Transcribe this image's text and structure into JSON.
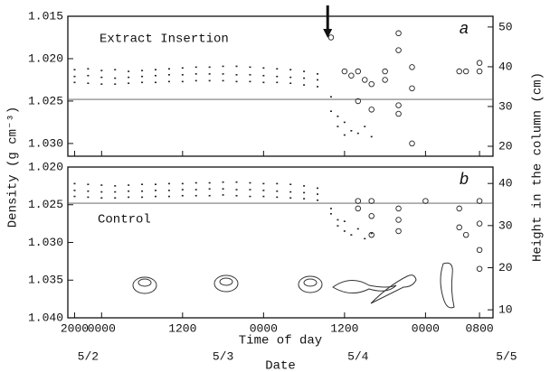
{
  "chart_data": [
    {
      "type": "scatter",
      "panel_label": "a",
      "annotation": "Extract Insertion",
      "arrow_x": 37.5,
      "ylabel": "Density (g cm⁻³)",
      "y2label": "Height in the column (cm)",
      "xlim": [
        -1,
        62
      ],
      "xticks": [
        0,
        4,
        16,
        28,
        40,
        52,
        60
      ],
      "ylim": [
        1.015,
        1.0315
      ],
      "invert_y": true,
      "yticks": [
        {
          "value": 1.015,
          "label": "1.015"
        },
        {
          "value": 1.02,
          "label": "1.020"
        },
        {
          "value": 1.025,
          "label": "1.025"
        },
        {
          "value": 1.03,
          "label": "1.030"
        }
      ],
      "y2lim": [
        17.5,
        52.7
      ],
      "y2ticks": [
        20,
        30,
        40,
        50
      ],
      "hline": 1.0248,
      "color": "#222",
      "series": [
        {
          "marker": "dot",
          "x": [
            0,
            2,
            4,
            6,
            8,
            10,
            12,
            14,
            16,
            18,
            20,
            22,
            24,
            26,
            28,
            30,
            32,
            34,
            36
          ],
          "values": [
            1.0213,
            1.0212,
            1.0214,
            1.0213,
            1.0215,
            1.0214,
            1.0213,
            1.0212,
            1.0211,
            1.021,
            1.021,
            1.0209,
            1.0209,
            1.021,
            1.0211,
            1.0212,
            1.0213,
            1.0215,
            1.0218
          ]
        },
        {
          "marker": "dot",
          "x": [
            0,
            2,
            4,
            6,
            8,
            10,
            12,
            14,
            16,
            18,
            20,
            22,
            24,
            26,
            28,
            30,
            32,
            34,
            36
          ],
          "values": [
            1.0221,
            1.022,
            1.0222,
            1.0223,
            1.0222,
            1.0221,
            1.022,
            1.0219,
            1.0219,
            1.0218,
            1.0218,
            1.0218,
            1.0219,
            1.0219,
            1.022,
            1.0221,
            1.0222,
            1.0223,
            1.0225
          ]
        },
        {
          "marker": "dot",
          "x": [
            0,
            2,
            4,
            6,
            8,
            10,
            12,
            14,
            16,
            18,
            20,
            22,
            24,
            26,
            28,
            30,
            32,
            34,
            36
          ],
          "values": [
            1.0228,
            1.0229,
            1.023,
            1.023,
            1.0229,
            1.0228,
            1.0228,
            1.0227,
            1.0227,
            1.0226,
            1.0226,
            1.0226,
            1.0227,
            1.0227,
            1.0228,
            1.0228,
            1.0229,
            1.0231,
            1.0233
          ]
        },
        {
          "marker": "dot",
          "x": [
            38,
            38,
            39,
            39,
            40,
            40,
            41,
            42,
            43,
            44
          ],
          "values": [
            1.0245,
            1.0262,
            1.0268,
            1.028,
            1.0275,
            1.029,
            1.0285,
            1.0288,
            1.028,
            1.0292
          ]
        },
        {
          "marker": "circle",
          "x": [
            38,
            40,
            41,
            42,
            43,
            44,
            42,
            44,
            46,
            46,
            48,
            48,
            48,
            48,
            50,
            50,
            50,
            57,
            58,
            60,
            60
          ],
          "values": [
            1.0175,
            1.0215,
            1.022,
            1.0215,
            1.0225,
            1.023,
            1.025,
            1.026,
            1.0215,
            1.0225,
            1.019,
            1.017,
            1.0255,
            1.0265,
            1.021,
            1.0235,
            1.03,
            1.0215,
            1.0215,
            1.0215,
            1.0205
          ]
        }
      ]
    },
    {
      "type": "scatter",
      "panel_label": "b",
      "annotation": "Control",
      "xlabel": "Time of day",
      "date_label": "Date",
      "xlim": [
        -1,
        62
      ],
      "xticks": [
        {
          "value": 0,
          "label": "2000"
        },
        {
          "value": 4,
          "label": "0000"
        },
        {
          "value": 16,
          "label": "1200"
        },
        {
          "value": 28,
          "label": "0000"
        },
        {
          "value": 40,
          "label": "1200"
        },
        {
          "value": 52,
          "label": "0000"
        },
        {
          "value": 60,
          "label": "0800"
        }
      ],
      "date_ticks": [
        {
          "value": 2,
          "label": "5/2"
        },
        {
          "value": 22,
          "label": "5/3"
        },
        {
          "value": 42,
          "label": "5/4"
        },
        {
          "value": 64,
          "label": "5/5"
        }
      ],
      "ylim": [
        1.02,
        1.04
      ],
      "invert_y": true,
      "yticks": [
        {
          "value": 1.02,
          "label": "1.020"
        },
        {
          "value": 1.025,
          "label": "1.025"
        },
        {
          "value": 1.03,
          "label": "1.030"
        },
        {
          "value": 1.035,
          "label": "1.035"
        },
        {
          "value": 1.04,
          "label": "1.040"
        }
      ],
      "y2lim": [
        8.1,
        43.9
      ],
      "y2ticks": [
        10,
        20,
        30,
        40
      ],
      "hline": 1.0248,
      "color": "#222",
      "series": [
        {
          "marker": "dot",
          "x": [
            0,
            2,
            4,
            6,
            8,
            10,
            12,
            14,
            16,
            18,
            20,
            22,
            24,
            26,
            28,
            30,
            32,
            34,
            36
          ],
          "values": [
            1.0222,
            1.0223,
            1.0224,
            1.0225,
            1.0224,
            1.0223,
            1.0223,
            1.0222,
            1.0222,
            1.0221,
            1.0221,
            1.022,
            1.022,
            1.0221,
            1.0222,
            1.0222,
            1.0223,
            1.0225,
            1.0228
          ]
        },
        {
          "marker": "dot",
          "x": [
            0,
            2,
            4,
            6,
            8,
            10,
            12,
            14,
            16,
            18,
            20,
            22,
            24,
            26,
            28,
            30,
            32,
            34,
            36
          ],
          "values": [
            1.0231,
            1.0232,
            1.0233,
            1.0233,
            1.0232,
            1.0232,
            1.0231,
            1.0231,
            1.023,
            1.023,
            1.0229,
            1.0229,
            1.023,
            1.023,
            1.0231,
            1.0232,
            1.0233,
            1.0234,
            1.0236
          ]
        },
        {
          "marker": "dot",
          "x": [
            0,
            2,
            4,
            6,
            8,
            10,
            12,
            14,
            16,
            18,
            20,
            22,
            24,
            26,
            28,
            30,
            32,
            34,
            36
          ],
          "values": [
            1.0239,
            1.024,
            1.0241,
            1.0241,
            1.024,
            1.024,
            1.0239,
            1.0239,
            1.0238,
            1.0238,
            1.0238,
            1.0237,
            1.0238,
            1.0239,
            1.0239,
            1.024,
            1.0241,
            1.0242,
            1.0244
          ]
        },
        {
          "marker": "dot",
          "x": [
            38,
            38,
            39,
            39,
            40,
            40,
            41,
            42,
            43,
            44
          ],
          "values": [
            1.0255,
            1.0262,
            1.027,
            1.0278,
            1.0272,
            1.0285,
            1.029,
            1.0282,
            1.0295,
            1.0288
          ]
        },
        {
          "marker": "circle",
          "x": [
            42,
            42,
            44,
            44,
            44,
            48,
            48,
            48,
            52,
            57,
            57,
            58,
            60,
            60,
            60,
            60
          ],
          "values": [
            1.0245,
            1.0255,
            1.0245,
            1.0265,
            1.029,
            1.0255,
            1.027,
            1.0285,
            1.0245,
            1.0255,
            1.028,
            1.029,
            1.0245,
            1.0275,
            1.031,
            1.0335
          ]
        }
      ]
    }
  ]
}
